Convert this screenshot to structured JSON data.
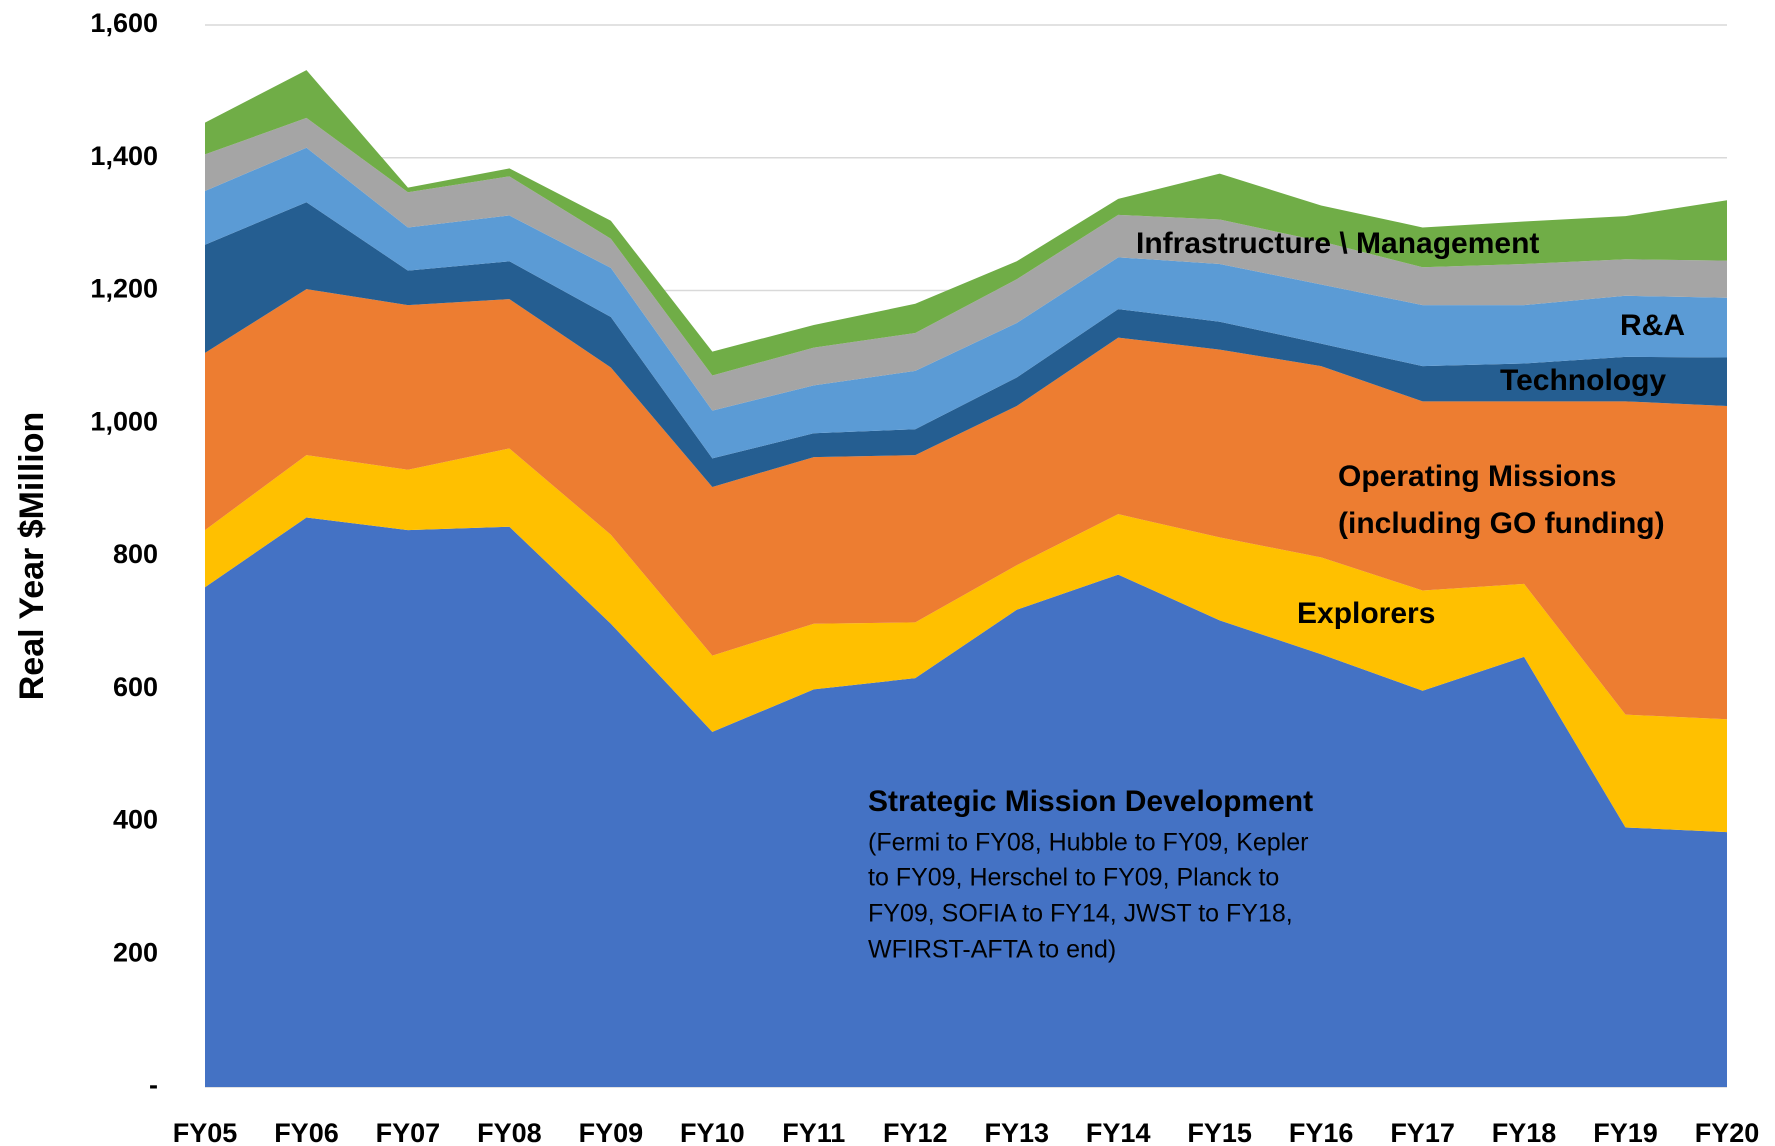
{
  "chart_data": {
    "type": "stacked_area",
    "y_label": "Real Year $Million",
    "categories": [
      "FY05",
      "FY06",
      "FY07",
      "FY08",
      "FY09",
      "FY10",
      "FY11",
      "FY12",
      "FY13",
      "FY14",
      "FY15",
      "FY16",
      "FY17",
      "FY18",
      "FY19",
      "FY20"
    ],
    "series": [
      {
        "color": "#4472c4",
        "values": [
          753,
          858,
          839,
          844,
          698,
          535,
          599,
          616,
          719,
          772,
          703,
          652,
          597,
          648,
          391,
          384
        ]
      },
      {
        "color": "#ffc000",
        "values": [
          86,
          94,
          91,
          118,
          134,
          115,
          99,
          84,
          67,
          91,
          125,
          146,
          151,
          110,
          170,
          170
        ]
      },
      {
        "color": "#ed7d31",
        "values": [
          267,
          250,
          248,
          225,
          252,
          254,
          251,
          252,
          240,
          266,
          283,
          288,
          285,
          275,
          472,
          472
        ]
      },
      {
        "color": "#255e91",
        "values": [
          163,
          131,
          52,
          57,
          76,
          43,
          36,
          39,
          43,
          43,
          42,
          34,
          53,
          57,
          67,
          73
        ]
      },
      {
        "color": "#5b9bd5",
        "values": [
          81,
          82,
          65,
          69,
          74,
          72,
          72,
          88,
          82,
          78,
          87,
          89,
          92,
          88,
          92,
          90
        ]
      },
      {
        "color": "#a5a5a5",
        "values": [
          55,
          45,
          53,
          59,
          44,
          53,
          57,
          57,
          66,
          64,
          67,
          65,
          57,
          62,
          55,
          56
        ]
      },
      {
        "color": "#70ad47",
        "values": [
          48,
          72,
          7,
          12,
          27,
          36,
          34,
          44,
          27,
          24,
          69,
          54,
          60,
          64,
          65,
          91
        ]
      }
    ],
    "ylim": [
      0,
      1600
    ],
    "yticks": [
      {
        "value": 0,
        "label": "-"
      },
      200,
      400,
      600,
      800,
      {
        "value": 1000,
        "label": "1,000"
      },
      {
        "value": 1200,
        "label": "1,200"
      },
      {
        "value": 1400,
        "label": "1,400"
      },
      {
        "value": 1600,
        "label": "1,600"
      }
    ],
    "grid": true,
    "annotations": [
      {
        "text": "Infrastructure \\ Management",
        "bold": true
      },
      {
        "text": "R&A",
        "bold": true
      },
      {
        "text": "Technology",
        "bold": true
      },
      {
        "text": "Operating Missions",
        "bold": true
      },
      {
        "text": "(including GO funding)",
        "bold": true
      },
      {
        "text": "Explorers",
        "bold": true
      },
      {
        "text": "Strategic Mission Development",
        "bold": true
      },
      {
        "text": "(Fermi to FY08, Hubble to FY09, Kepler",
        "bold": false
      },
      {
        "text": "to FY09, Herschel to FY09, Planck to",
        "bold": false
      },
      {
        "text": "FY09, SOFIA to FY14, JWST to FY18,",
        "bold": false
      },
      {
        "text": "WFIRST-AFTA to end)",
        "bold": false
      }
    ]
  }
}
